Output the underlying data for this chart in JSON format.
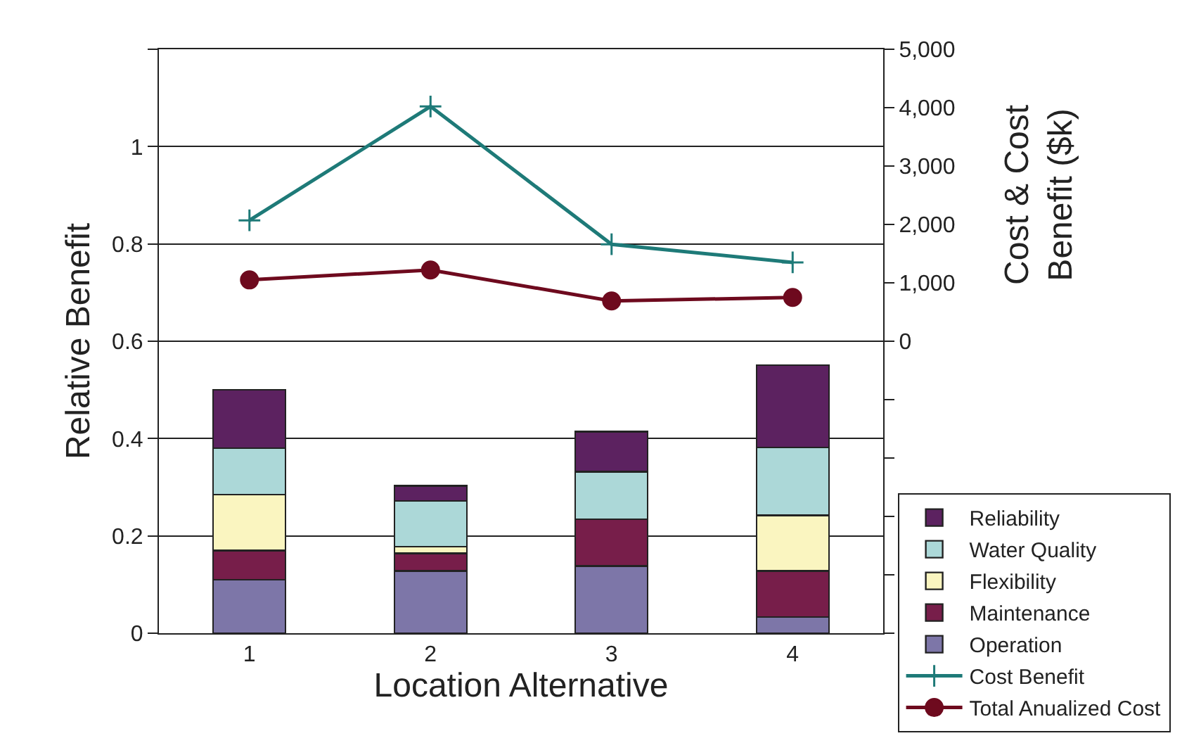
{
  "chart_data": {
    "type": "bar",
    "stacked": true,
    "xlabel": "Location Alternative",
    "ylabel": "Relative Benefit",
    "y2label": "Cost & Cost\nBenefit ($k)",
    "categories": [
      "1",
      "2",
      "3",
      "4"
    ],
    "series": [
      {
        "name": "Operation",
        "color": "#7d76a8",
        "values": [
          0.11,
          0.128,
          0.138,
          0.033
        ]
      },
      {
        "name": "Maintenance",
        "color": "#771e4a",
        "values": [
          0.06,
          0.036,
          0.096,
          0.095
        ]
      },
      {
        "name": "Flexibility",
        "color": "#faf5c0",
        "values": [
          0.115,
          0.014,
          0,
          0.114
        ]
      },
      {
        "name": "Water Quality",
        "color": "#acd8d8",
        "values": [
          0.095,
          0.094,
          0.098,
          0.14
        ]
      },
      {
        "name": "Reliability",
        "color": "#5c2260",
        "values": [
          0.12,
          0.031,
          0.082,
          0.169
        ]
      },
      {
        "name": "Cost Benefit",
        "type": "line",
        "axis": "y2",
        "marker": "cross",
        "color": "#1e7a78",
        "values": [
          2070,
          4020,
          1660,
          1350
        ]
      },
      {
        "name": "Total Anualized Cost",
        "type": "line",
        "axis": "y2",
        "marker": "circle",
        "color": "#6e0a1e",
        "values": [
          1050,
          1220,
          690,
          750
        ]
      }
    ],
    "ylim": [
      0,
      1.2
    ],
    "yticks": [
      0,
      0.2,
      0.4,
      0.6,
      0.8,
      1,
      {
        "value": 1.2,
        "label": null
      }
    ],
    "y2lim": [
      -5000,
      5000
    ],
    "y2ticks": [
      {
        "value": -5000,
        "label": null
      },
      {
        "value": -4000,
        "label": null
      },
      {
        "value": -3000,
        "label": null
      },
      {
        "value": -2000,
        "label": null
      },
      {
        "value": -1000,
        "label": null
      },
      0,
      {
        "value": 1000,
        "label": "1,000"
      },
      {
        "value": 2000,
        "label": "2,000"
      },
      {
        "value": 3000,
        "label": "3,000"
      },
      {
        "value": 4000,
        "label": "4,000"
      },
      {
        "value": 5000,
        "label": "5,000"
      }
    ],
    "grid": "y",
    "legend": "right"
  }
}
